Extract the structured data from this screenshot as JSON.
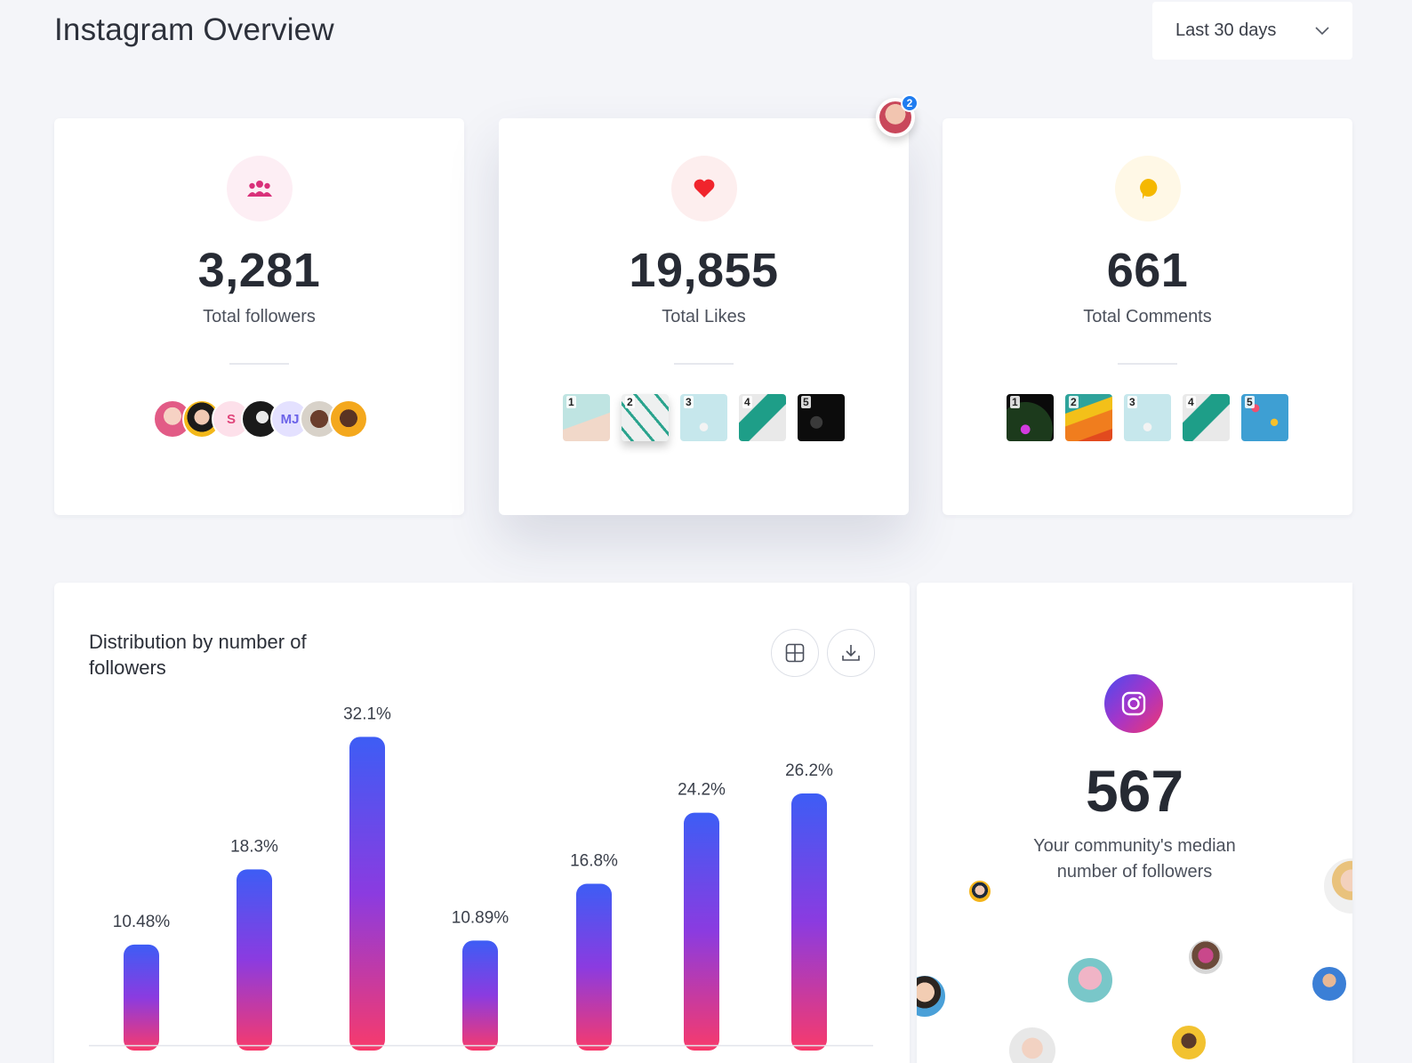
{
  "header": {
    "title": "Instagram Overview",
    "range_select": {
      "value": "Last 30 days"
    }
  },
  "stats": [
    {
      "label": "Total followers",
      "value": "3,281",
      "icon": "group-icon",
      "avatars": [
        {
          "initials": ""
        },
        {
          "initials": ""
        },
        {
          "initials": "S"
        },
        {
          "initials": ""
        },
        {
          "initials": "MJ"
        },
        {
          "initials": ""
        },
        {
          "initials": ""
        }
      ]
    },
    {
      "label": "Total Likes",
      "value": "19,855",
      "icon": "heart-icon",
      "thumbs": [
        "1",
        "2",
        "3",
        "4",
        "5"
      ]
    },
    {
      "label": "Total Comments",
      "value": "661",
      "icon": "comment-bubble-icon",
      "thumbs": [
        "1",
        "2",
        "3",
        "4",
        "5"
      ]
    }
  ],
  "notification": {
    "count": "2"
  },
  "distribution": {
    "title": "Distribution by number of followers",
    "actions": [
      "table-view-icon",
      "download-icon"
    ]
  },
  "chart_data": {
    "type": "bar",
    "title": "Distribution by number of followers",
    "categories": [
      "",
      "",
      "",
      "",
      "",
      "",
      ""
    ],
    "values": [
      10.48,
      18.3,
      32.1,
      10.89,
      16.8,
      24.2,
      26.2
    ],
    "labels": [
      "10.48%",
      "18.3%",
      "32.1%",
      "10.89%",
      "16.8%",
      "24.2%",
      "26.2%"
    ],
    "ylim": [
      0,
      35
    ],
    "xlabel": "",
    "ylabel": "",
    "grid": false
  },
  "median": {
    "value": "567",
    "label": "Your community's median number of followers"
  },
  "colors": {
    "accent_blue": "#3f5cf4",
    "accent_pink": "#f43d6b",
    "followers_icon_bg": "#fdeef4",
    "likes_icon_bg": "#fdeeee",
    "comments_icon_bg": "#fff8e6"
  }
}
